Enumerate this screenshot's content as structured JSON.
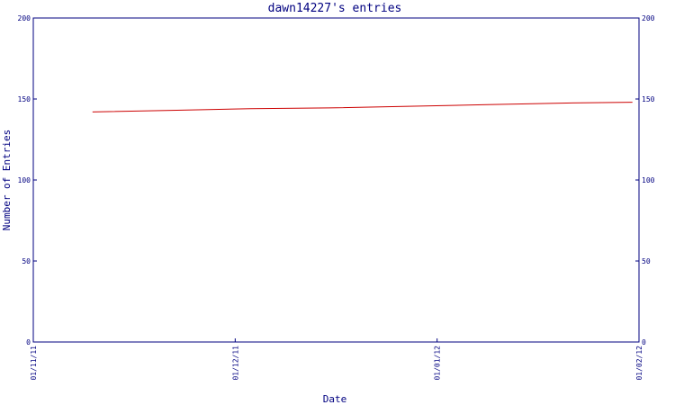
{
  "chart_data": {
    "type": "line",
    "title": "dawn14227's entries",
    "xlabel": "Date",
    "ylabel": "Number of Entries",
    "x_ticks": [
      "01/11/11",
      "01/12/11",
      "01/01/12",
      "01/02/12"
    ],
    "x_range": [
      "2011-11-01",
      "2012-02-01"
    ],
    "ylim": [
      0,
      200
    ],
    "y_ticks": [
      0,
      50,
      100,
      150,
      200
    ],
    "secondary_y_axis": true,
    "grid": false,
    "colors": {
      "axis": "#000080",
      "series": "#cc0000"
    },
    "series": [
      {
        "x": [
          "2011-11-10",
          "2011-11-22",
          "2011-12-04",
          "2011-12-16",
          "2011-12-28",
          "2012-01-09",
          "2012-01-21",
          "2012-01-31"
        ],
        "values": [
          142,
          143,
          144,
          144.5,
          145.5,
          146.5,
          147.5,
          148
        ]
      }
    ]
  }
}
